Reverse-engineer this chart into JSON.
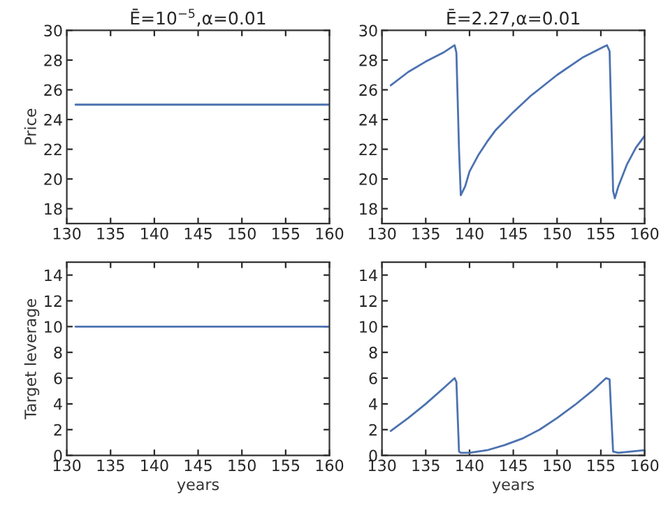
{
  "chart_data": [
    {
      "type": "line",
      "title": "Ē=10$^{−5}$,α=0.01",
      "ylabel": "Price",
      "xlim": [
        130,
        160
      ],
      "xticks": [
        130,
        135,
        140,
        145,
        150,
        155,
        160
      ],
      "ylim": [
        17,
        30
      ],
      "yticks": [
        18,
        20,
        22,
        24,
        26,
        28,
        30
      ],
      "grid": false,
      "series": [
        {
          "color": "#4c72b0",
          "x": [
            131,
            160
          ],
          "values": [
            25,
            25
          ]
        }
      ]
    },
    {
      "type": "line",
      "title": "Ē=2.27,α=0.01",
      "xlim": [
        130,
        160
      ],
      "xticks": [
        130,
        135,
        140,
        145,
        150,
        155,
        160
      ],
      "ylim": [
        17,
        30
      ],
      "yticks": [
        18,
        20,
        22,
        24,
        26,
        28,
        30
      ],
      "grid": false,
      "series": [
        {
          "color": "#4c72b0",
          "x": [
            131,
            133,
            135,
            137,
            138.3,
            138.5,
            138.8,
            139,
            139.5,
            140,
            141,
            142,
            143,
            145,
            147,
            150,
            153,
            155,
            155.7,
            156.0,
            156.2,
            156.4,
            156.6,
            157,
            158,
            159,
            160
          ],
          "values": [
            26.3,
            27.2,
            27.9,
            28.5,
            29.0,
            28.5,
            22,
            18.9,
            19.5,
            20.5,
            21.6,
            22.5,
            23.3,
            24.5,
            25.6,
            27.0,
            28.2,
            28.8,
            29.0,
            28.6,
            24,
            19.2,
            18.7,
            19.5,
            21.0,
            22.1,
            22.9
          ]
        }
      ]
    },
    {
      "type": "line",
      "ylabel": "Target leverage",
      "xlabel": "years",
      "xlim": [
        130,
        160
      ],
      "xticks": [
        130,
        135,
        140,
        145,
        150,
        155,
        160
      ],
      "ylim": [
        0,
        15
      ],
      "yticks": [
        0,
        2,
        4,
        6,
        8,
        10,
        12,
        14
      ],
      "grid": false,
      "series": [
        {
          "color": "#4c72b0",
          "x": [
            131,
            160
          ],
          "values": [
            10,
            10
          ]
        }
      ]
    },
    {
      "type": "line",
      "xlabel": "years",
      "xlim": [
        130,
        160
      ],
      "xticks": [
        130,
        135,
        140,
        145,
        150,
        155,
        160
      ],
      "ylim": [
        0,
        15
      ],
      "yticks": [
        0,
        2,
        4,
        6,
        8,
        10,
        12,
        14
      ],
      "grid": false,
      "series": [
        {
          "color": "#4c72b0",
          "x": [
            131,
            133,
            135,
            137,
            138.3,
            138.5,
            138.8,
            139,
            140,
            142,
            144,
            146,
            148,
            150,
            152,
            154,
            155.6,
            156.0,
            156.2,
            156.4,
            157,
            160
          ],
          "values": [
            1.9,
            2.9,
            4.0,
            5.2,
            6.0,
            5.7,
            0.3,
            0.2,
            0.2,
            0.4,
            0.8,
            1.3,
            2.0,
            2.9,
            3.9,
            5.0,
            6.0,
            5.9,
            3,
            0.3,
            0.2,
            0.4
          ]
        }
      ]
    }
  ]
}
